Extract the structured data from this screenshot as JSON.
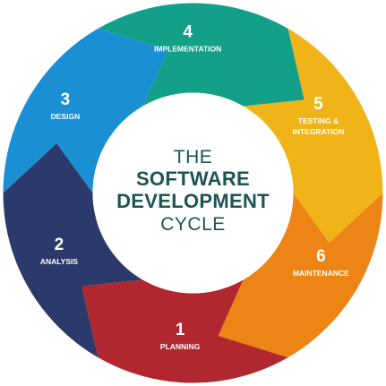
{
  "center": {
    "line1": "THE",
    "line2": "SOFTWARE",
    "line3": "DEVELOPMENT",
    "line4": "CYCLE"
  },
  "stages": [
    {
      "number": "1",
      "label": "PLANNING",
      "color": "#b0272f"
    },
    {
      "number": "2",
      "label": "ANALYSIS",
      "color": "#2b3a6b"
    },
    {
      "number": "3",
      "label": "DESIGN",
      "color": "#1b8fd3"
    },
    {
      "number": "4",
      "label": "IMPLEMENTATION",
      "color": "#13a088"
    },
    {
      "number": "5",
      "label": "TESTING &",
      "label2": "INTEGRATION",
      "color": "#f0b419"
    },
    {
      "number": "6",
      "label": "MAINTENANCE",
      "color": "#ec8416"
    }
  ],
  "colors": {
    "center_text": "#1d5454",
    "background": "#ffffff"
  }
}
